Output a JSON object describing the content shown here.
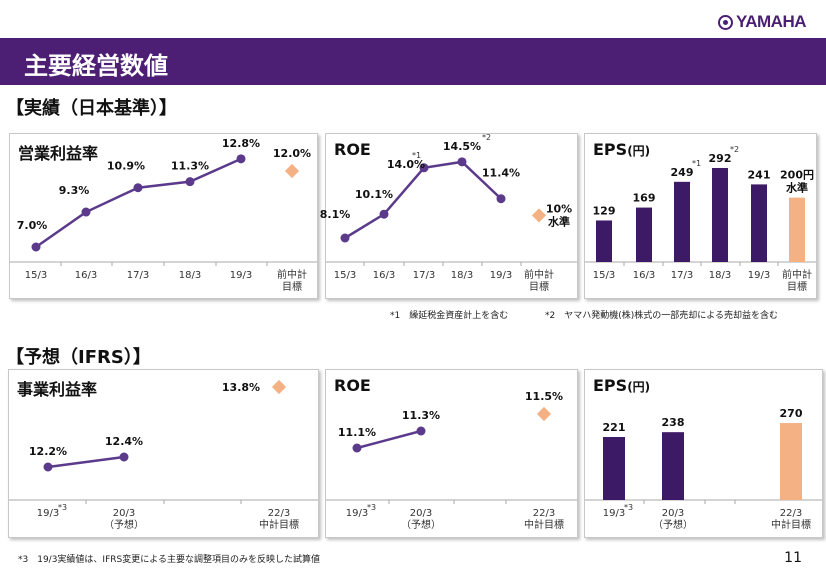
{
  "brand": {
    "logo_text": "YAMAHA"
  },
  "header": {
    "title": "主要経営数値"
  },
  "colors": {
    "banner": "#4c1f75",
    "series": "#5b3a8c",
    "bar": "#3d1a66",
    "target": "#f4b183"
  },
  "actual": {
    "heading": "【実績（日本基準）】",
    "charts": [
      {
        "title": "営業利益率",
        "type": "line",
        "categories": [
          "15/3",
          "16/3",
          "17/3",
          "18/3",
          "19/3"
        ],
        "labels": [
          "7.0%",
          "9.3%",
          "10.9%",
          "11.3%",
          "12.8%"
        ],
        "values": [
          7.0,
          9.3,
          10.9,
          11.3,
          12.8
        ],
        "notes": [
          "",
          "",
          "",
          "",
          ""
        ],
        "target": {
          "category": [
            "前中計",
            "目標"
          ],
          "value": 12.0,
          "label": "12.0%"
        }
      },
      {
        "title": "ROE",
        "type": "line",
        "categories": [
          "15/3",
          "16/3",
          "17/3",
          "18/3",
          "19/3"
        ],
        "labels": [
          "8.1%",
          "10.1%",
          "14.0%",
          "14.5%",
          "11.4%"
        ],
        "values": [
          8.1,
          10.1,
          14.0,
          14.5,
          11.4
        ],
        "notes": [
          "",
          "",
          "*1",
          "*2",
          ""
        ],
        "target": {
          "category": [
            "前中計",
            "目標"
          ],
          "value": 10,
          "label": "10%",
          "label2": "水準"
        }
      },
      {
        "title": "EPS",
        "unit": "(円)",
        "type": "bar",
        "categories": [
          "15/3",
          "16/3",
          "17/3",
          "18/3",
          "19/3"
        ],
        "labels": [
          "129",
          "169",
          "249",
          "292",
          "241"
        ],
        "values": [
          129,
          169,
          249,
          292,
          241
        ],
        "notes": [
          "",
          "",
          "*1",
          "*2",
          ""
        ],
        "target": {
          "category": [
            "前中計",
            "目標"
          ],
          "value": 200,
          "label": "200円",
          "label2": "水準"
        }
      }
    ],
    "footnotes": [
      "*1　繰延税金資産計上を含む",
      "*2　ヤマハ発動機(株)株式の一部売却による売却益を含む"
    ]
  },
  "forecast": {
    "heading": "【予想（IFRS）】",
    "charts": [
      {
        "title": "事業利益率",
        "type": "line",
        "categories": [
          [
            "19/3"
          ],
          [
            "20/3",
            "（予想）"
          ]
        ],
        "cat_notes": [
          "*3",
          ""
        ],
        "labels": [
          "12.2%",
          "12.4%"
        ],
        "values": [
          12.2,
          12.4
        ],
        "target": {
          "category": [
            "22/3",
            "中計目標"
          ],
          "value": 13.8,
          "label": "13.8%"
        }
      },
      {
        "title": "ROE",
        "type": "line",
        "categories": [
          [
            "19/3"
          ],
          [
            "20/3",
            "（予想）"
          ]
        ],
        "cat_notes": [
          "*3",
          ""
        ],
        "labels": [
          "11.1%",
          "11.3%"
        ],
        "values": [
          11.1,
          11.3
        ],
        "target": {
          "category": [
            "22/3",
            "中計目標"
          ],
          "value": 11.5,
          "label": "11.5%"
        }
      },
      {
        "title": "EPS",
        "unit": "(円)",
        "type": "bar",
        "categories": [
          [
            "19/3"
          ],
          [
            "20/3",
            "（予想）"
          ]
        ],
        "cat_notes": [
          "*3",
          ""
        ],
        "labels": [
          "221",
          "238"
        ],
        "values": [
          221,
          238
        ],
        "target": {
          "category": [
            "22/3",
            "中計目標"
          ],
          "value": 270,
          "label": "270"
        }
      }
    ],
    "footnote": "*3　19/3実績値は、IFRS変更による主要な調整項目のみを反映した試算値"
  },
  "page_number": "11"
}
